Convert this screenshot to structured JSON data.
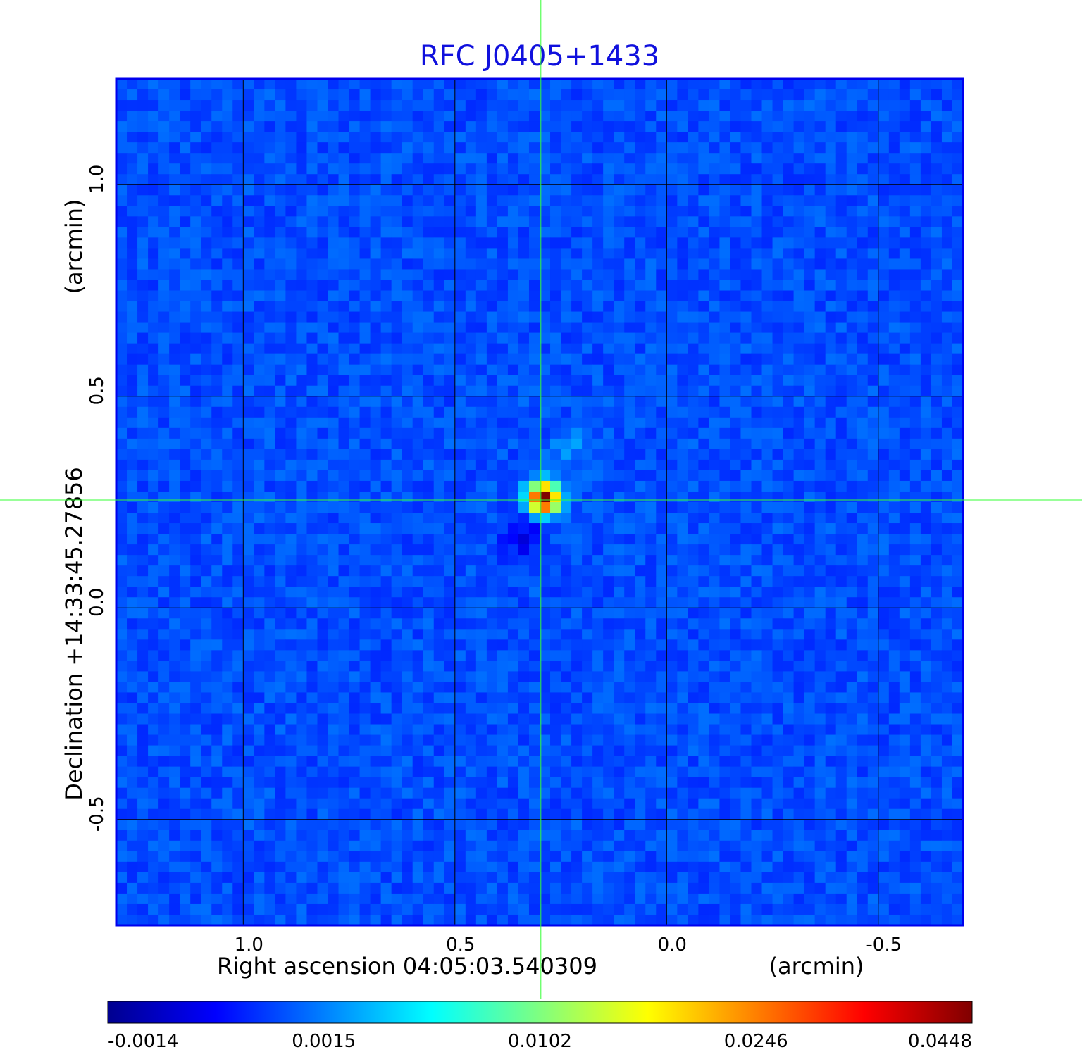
{
  "chart_data": {
    "type": "heatmap",
    "title": "RFC J0405+1433",
    "xlabel": "Right ascension  04:05:03.540309",
    "xunit": "(arcmin)",
    "ylabel": "Declination  +14:33:45.27856",
    "yunit": "(arcmin)",
    "xlim": [
      1.3,
      -0.7
    ],
    "ylim": [
      -0.75,
      1.25
    ],
    "x_ticks": [
      1.0,
      0.5,
      0.0,
      -0.5
    ],
    "x_tick_labels": [
      "1.0",
      "0.5",
      "0.0",
      "-0.5"
    ],
    "y_ticks": [
      1.0,
      0.5,
      0.0,
      -0.5
    ],
    "y_tick_labels": [
      "1.0",
      "0.5",
      "0.0",
      "-0.5"
    ],
    "grid": true,
    "crosshair": {
      "x": 0.297,
      "y": 0.255
    },
    "source_peak": {
      "x": 0.29,
      "y": 0.26,
      "value": 0.0448
    },
    "colorbar": {
      "colormap": "jet",
      "ticks": [
        -0.0014,
        0.0015,
        0.0102,
        0.0246,
        0.0448
      ],
      "tick_labels": [
        "-0.0014",
        "0.0015",
        "0.0102",
        "0.0246",
        "0.0448"
      ]
    },
    "colors": {
      "title": "#1010dd",
      "crosshair": "#33ff33",
      "grid": "#000000",
      "frame": "#0000ee"
    }
  }
}
